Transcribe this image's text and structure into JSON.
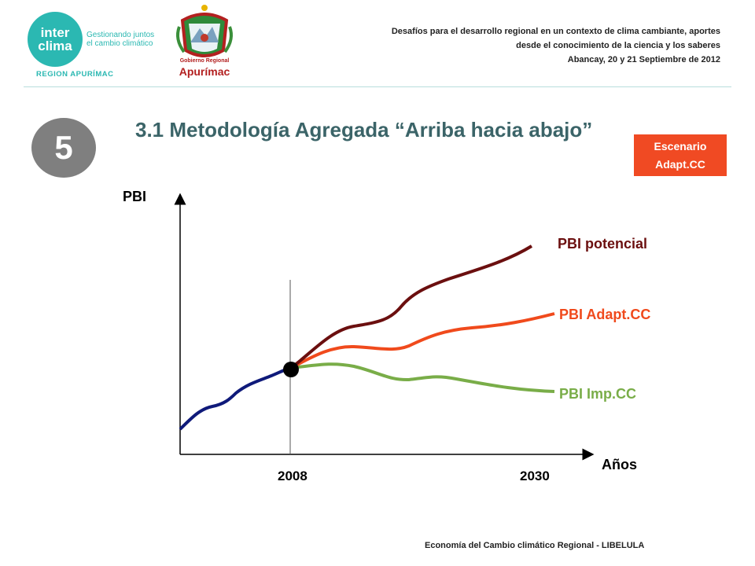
{
  "header": {
    "logo_interclima_line1": "inter",
    "logo_interclima_line2": "clima",
    "logo_tagline": "Gestionando juntos el cambio climático",
    "region_label": "REGION APURÍMAC",
    "gobierno_line1": "Gobierno Regional",
    "gobierno_line2": "Apurímac",
    "event_line1": "Desafíos para el desarrollo regional en un contexto de clima cambiante, aportes",
    "event_line2": "desde el conocimiento de la ciencia y los saberes",
    "event_line3": "Abancay, 20 y 21 Septiembre de 2012"
  },
  "step_number": "5",
  "slide_title": "3.1 Metodología Agregada “Arriba hacia abajo”",
  "scenario_badge": {
    "line1": "Escenario",
    "line2": "Adapt.CC"
  },
  "diagram": {
    "y_axis_label": "PBI",
    "x_axis_label": "Años",
    "tick_2008": "2008",
    "tick_2030": "2030",
    "series": [
      {
        "label": "PBI potencial",
        "color": "#6b0f0f"
      },
      {
        "label": "PBI Adapt.CC",
        "color": "#f04a1c"
      },
      {
        "label": "PBI Imp.CC",
        "color": "#79ad48"
      }
    ],
    "history_color": "#0f1a7a"
  },
  "footer": "Economía del Cambio climático Regional - LIBELULA"
}
